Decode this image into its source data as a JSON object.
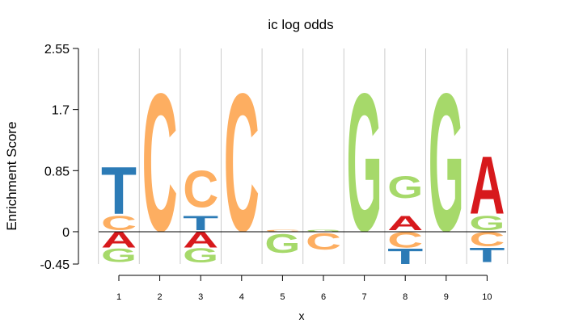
{
  "chart_data": {
    "type": "sequence-logo",
    "title": "ic log odds",
    "xlabel": "x",
    "ylabel": "Enrichment Score",
    "ylim": [
      -0.45,
      2.55
    ],
    "yticks": [
      "-0.45",
      "0",
      "0.85",
      "1.7",
      "2.55"
    ],
    "ytick_values": [
      -0.45,
      0,
      0.85,
      1.7,
      2.55
    ],
    "positions": [
      "1",
      "2",
      "3",
      "4",
      "5",
      "6",
      "7",
      "8",
      "9",
      "10"
    ],
    "grid": true,
    "colors": {
      "A": "#d7191c",
      "C": "#fdae61",
      "G": "#a6d96a",
      "T": "#2c7bb6"
    },
    "stacks": [
      {
        "position": "1",
        "letters": [
          {
            "letter": "T",
            "from": 0.25,
            "to": 0.92
          },
          {
            "letter": "C",
            "from": 0.02,
            "to": 0.22
          },
          {
            "letter": "A",
            "from": -0.22,
            "to": 0.0
          },
          {
            "letter": "G",
            "from": -0.42,
            "to": -0.23
          }
        ]
      },
      {
        "position": "2",
        "letters": [
          {
            "letter": "C",
            "from": 0.02,
            "to": 1.98
          }
        ]
      },
      {
        "position": "3",
        "letters": [
          {
            "letter": "C",
            "from": 0.34,
            "to": 0.86
          },
          {
            "letter": "T",
            "from": 0.02,
            "to": 0.22
          },
          {
            "letter": "A",
            "from": -0.22,
            "to": 0.0
          },
          {
            "letter": "G",
            "from": -0.43,
            "to": -0.23
          }
        ]
      },
      {
        "position": "4",
        "letters": [
          {
            "letter": "C",
            "from": 0.02,
            "to": 1.98
          }
        ]
      },
      {
        "position": "5",
        "letters": [
          {
            "letter": "C",
            "from": 0.0,
            "to": 0.03
          },
          {
            "letter": "G",
            "from": -0.29,
            "to": -0.02
          }
        ]
      },
      {
        "position": "6",
        "letters": [
          {
            "letter": "G",
            "from": 0.0,
            "to": 0.03
          },
          {
            "letter": "C",
            "from": -0.25,
            "to": -0.02
          }
        ]
      },
      {
        "position": "7",
        "letters": [
          {
            "letter": "G",
            "from": 0.02,
            "to": 1.98
          }
        ]
      },
      {
        "position": "8",
        "letters": [
          {
            "letter": "G",
            "from": 0.47,
            "to": 0.78
          },
          {
            "letter": "A",
            "from": 0.02,
            "to": 0.22
          },
          {
            "letter": "C",
            "from": -0.22,
            "to": 0.0
          },
          {
            "letter": "T",
            "from": -0.45,
            "to": -0.23
          }
        ]
      },
      {
        "position": "9",
        "letters": [
          {
            "letter": "G",
            "from": 0.02,
            "to": 1.98
          }
        ]
      },
      {
        "position": "10",
        "letters": [
          {
            "letter": "A",
            "from": 0.25,
            "to": 1.07
          },
          {
            "letter": "G",
            "from": 0.02,
            "to": 0.22
          },
          {
            "letter": "C",
            "from": -0.2,
            "to": 0.0
          },
          {
            "letter": "T",
            "from": -0.42,
            "to": -0.22
          }
        ]
      }
    ]
  }
}
